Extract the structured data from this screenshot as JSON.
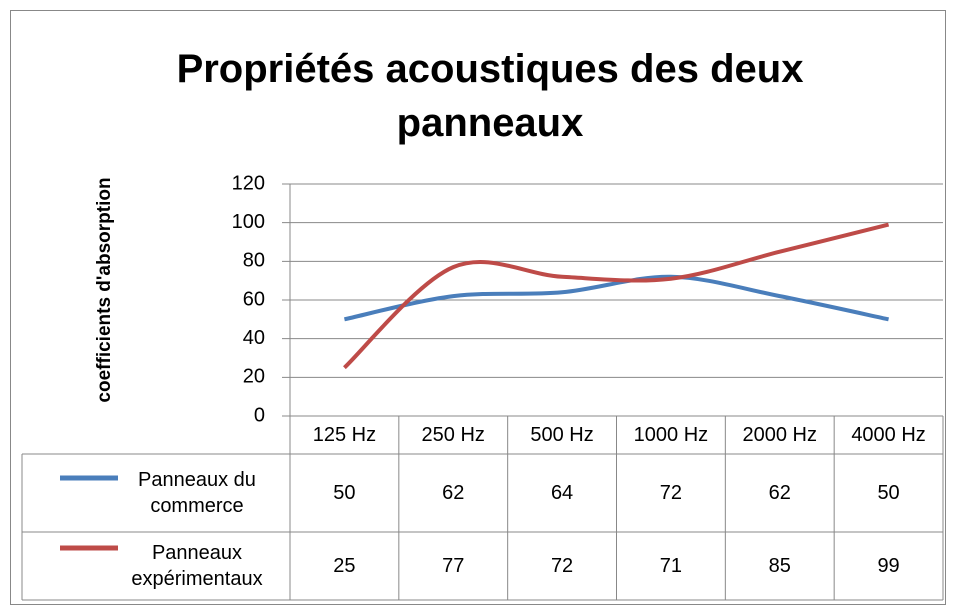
{
  "chart_data": {
    "type": "line",
    "title": "Propriétés acoustiques des deux panneaux",
    "y_label": "coefficients d'absorption",
    "categories": [
      "125 Hz",
      "250 Hz",
      "500 Hz",
      "1000 Hz",
      "2000 Hz",
      "4000 Hz"
    ],
    "series": [
      {
        "name": "Panneaux du commerce",
        "color": "#4a7ebb",
        "values": [
          50,
          62,
          64,
          72,
          62,
          50
        ]
      },
      {
        "name": "Panneaux expérimentaux",
        "color": "#be4b48",
        "values": [
          25,
          77,
          72,
          71,
          85,
          99
        ]
      }
    ],
    "ylim": [
      0,
      120
    ],
    "yticks": [
      0,
      20,
      40,
      60,
      80,
      100,
      120
    ],
    "grid": true,
    "smooth": true,
    "data_table": true
  }
}
